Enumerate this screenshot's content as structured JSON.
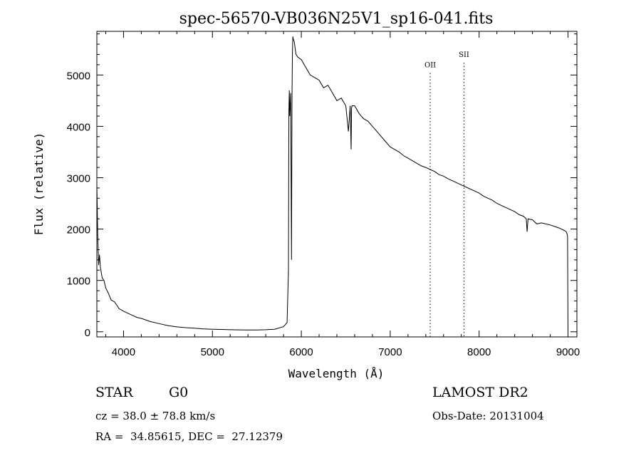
{
  "chart_data": {
    "type": "line",
    "title": "spec-56570-VB036N25V1_sp16-041.fits",
    "xlabel": "Wavelength (Å)",
    "ylabel": "Flux (relative)",
    "xlim": [
      3700,
      9100
    ],
    "ylim": [
      -100,
      5850
    ],
    "xticks": [
      4000,
      5000,
      6000,
      7000,
      8000,
      9000
    ],
    "yticks": [
      0,
      1000,
      2000,
      3000,
      4000,
      5000
    ],
    "grid": false,
    "series": [
      {
        "x": [
          3700,
          3710,
          3720,
          3730,
          3740,
          3760,
          3780,
          3800,
          3830,
          3860,
          3900,
          3950,
          4000,
          4050,
          4100,
          4150,
          4200,
          4300,
          4400,
          4500,
          4600,
          4700,
          4800,
          4900,
          5000,
          5100,
          5200,
          5300,
          5400,
          5500,
          5600,
          5700,
          5800,
          5840,
          5855,
          5860,
          5865,
          5870,
          5880,
          5890,
          5895,
          5900,
          5905,
          5910,
          5920,
          5940,
          5960,
          6000,
          6050,
          6100,
          6150,
          6200,
          6250,
          6300,
          6350,
          6400,
          6450,
          6500,
          6530,
          6550,
          6560,
          6565,
          6570,
          6600,
          6650,
          6700,
          6750,
          6800,
          6850,
          6900,
          6950,
          7000,
          7050,
          7100,
          7150,
          7200,
          7250,
          7300,
          7350,
          7400,
          7450,
          7500,
          7550,
          7600,
          7650,
          7700,
          7750,
          7800,
          7850,
          7900,
          7950,
          8000,
          8050,
          8100,
          8150,
          8200,
          8250,
          8300,
          8350,
          8400,
          8450,
          8500,
          8530,
          8540,
          8550,
          8600,
          8650,
          8700,
          8750,
          8800,
          8850,
          8900,
          8950,
          8980,
          8990,
          8995,
          9000
        ],
        "y": [
          2850,
          1900,
          1300,
          1500,
          1250,
          1050,
          1000,
          850,
          750,
          620,
          580,
          450,
          400,
          360,
          320,
          280,
          260,
          200,
          160,
          120,
          95,
          80,
          70,
          55,
          50,
          45,
          40,
          38,
          35,
          35,
          40,
          50,
          100,
          180,
          1200,
          4300,
          4700,
          4200,
          4650,
          1400,
          4600,
          5450,
          5750,
          5700,
          5650,
          5400,
          5350,
          5300,
          5150,
          5000,
          4950,
          4900,
          4750,
          4800,
          4650,
          4500,
          4550,
          4400,
          3900,
          4400,
          3550,
          4350,
          4400,
          4400,
          4250,
          4150,
          4100,
          4000,
          3900,
          3800,
          3700,
          3600,
          3550,
          3500,
          3430,
          3380,
          3330,
          3280,
          3230,
          3200,
          3160,
          3120,
          3060,
          3030,
          2980,
          2940,
          2900,
          2860,
          2820,
          2780,
          2740,
          2700,
          2640,
          2600,
          2560,
          2500,
          2460,
          2420,
          2380,
          2340,
          2280,
          2250,
          2200,
          1950,
          2200,
          2180,
          2100,
          2120,
          2100,
          2080,
          2050,
          2020,
          1980,
          1950,
          1900,
          1850,
          0
        ]
      }
    ],
    "annotations": [
      {
        "label": "OII",
        "x": 7450,
        "y": 5150
      },
      {
        "label": "SII",
        "x": 7830,
        "y": 5350
      }
    ]
  },
  "info": {
    "class": "STAR",
    "subclass": "G0",
    "survey": "LAMOST DR2",
    "cz": "cz = 38.0 ± 78.8 km/s",
    "obs_date": "Obs-Date: 20131004",
    "coords": "RA =  34.85615, DEC =  27.12379"
  }
}
